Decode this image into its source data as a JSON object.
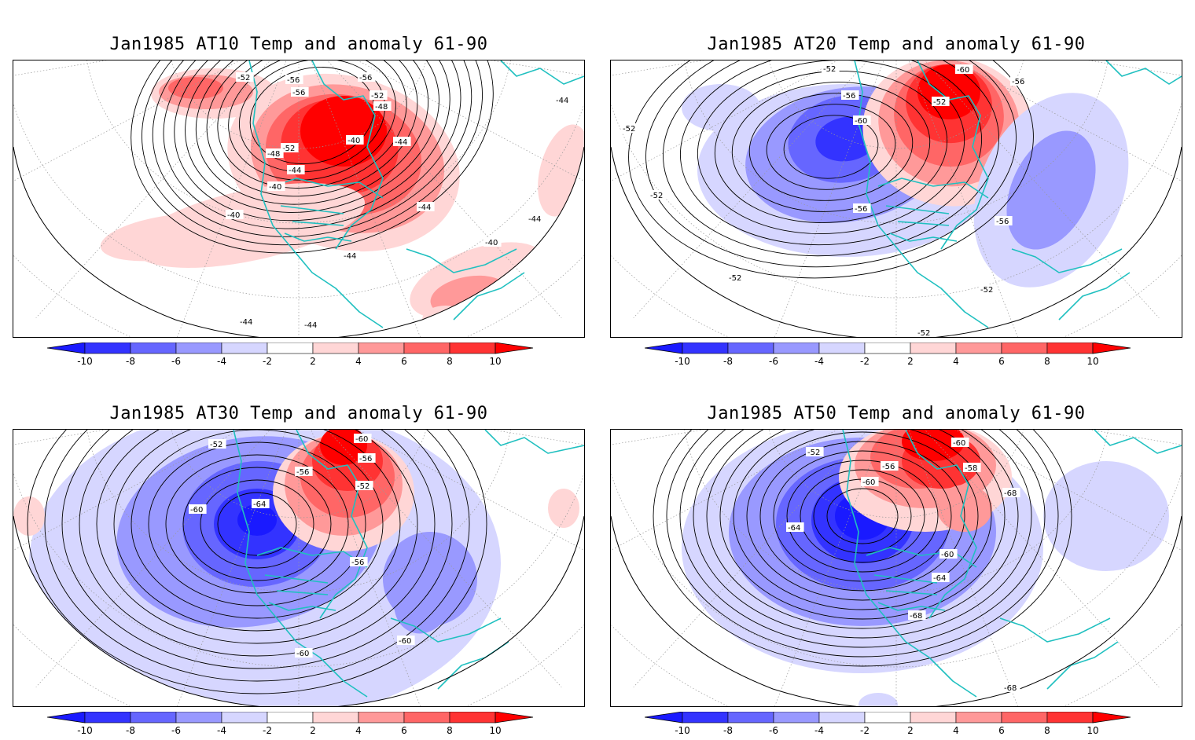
{
  "panels": [
    {
      "id": "at10",
      "title": "Jan1985 AT10 Temp and anomaly 61-90",
      "contour_labels": [
        "-52",
        "-56",
        "-56",
        "-56",
        "-52",
        "-48",
        "-40",
        "-44",
        "-52",
        "-48",
        "-44",
        "-40",
        "-40",
        "-44",
        "-44",
        "-40",
        "-44",
        "-44",
        "-44",
        "-44"
      ]
    },
    {
      "id": "at20",
      "title": "Jan1985 AT20 Temp and anomaly 61-90",
      "contour_labels": [
        "-52",
        "-60",
        "-56",
        "-56",
        "-52",
        "-60",
        "-52",
        "-52",
        "-56",
        "-56",
        "-52",
        "-52",
        "-52"
      ]
    },
    {
      "id": "at30",
      "title": "Jan1985 AT30 Temp and anomaly 61-90",
      "contour_labels": [
        "-52",
        "-60",
        "-56",
        "-56",
        "-52",
        "-60",
        "-64",
        "-56",
        "-60",
        "-60"
      ]
    },
    {
      "id": "at50",
      "title": "Jan1985 AT50 Temp and anomaly 61-90",
      "contour_labels": [
        "-52",
        "-60",
        "-56",
        "-58",
        "-60",
        "-64",
        "-60",
        "-64",
        "-68",
        "-68",
        "-68"
      ]
    }
  ],
  "colorbar": {
    "tick_labels": [
      "-10",
      "-8",
      "-6",
      "-4",
      "-2",
      "2",
      "4",
      "6",
      "8",
      "10"
    ],
    "colors": [
      "#1a1aff",
      "#3333ff",
      "#6666ff",
      "#9999ff",
      "#d6d6ff",
      "#ffffff",
      "#ffd6d6",
      "#ff9999",
      "#ff6666",
      "#ff3333",
      "#ff0000"
    ]
  },
  "colors": {
    "coast": "#20c0c0",
    "contour": "#000000",
    "grid": "#999999"
  }
}
